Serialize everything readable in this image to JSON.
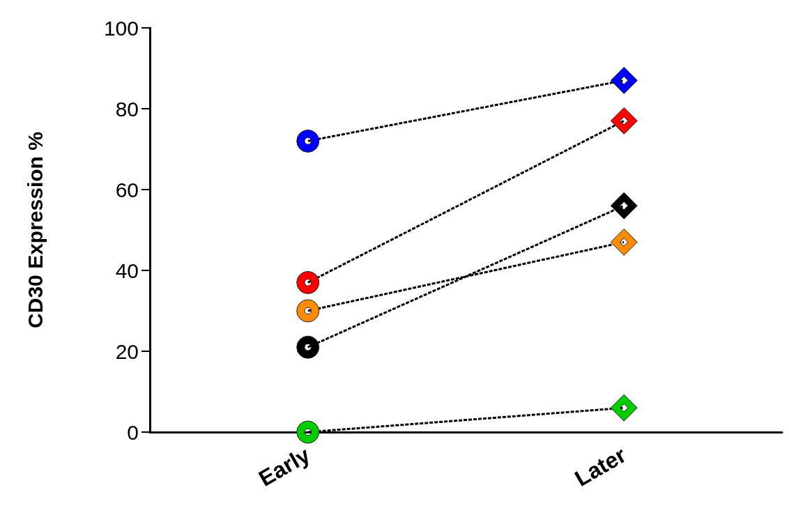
{
  "chart_data": {
    "type": "line",
    "ylabel": "CD30 Expression %",
    "categories": [
      "Early",
      "Later"
    ],
    "series": [
      {
        "color": "#0000ff",
        "values": [
          72,
          87
        ]
      },
      {
        "color": "#ff0000",
        "values": [
          37,
          77
        ]
      },
      {
        "color": "#ff8c00",
        "values": [
          30,
          47
        ]
      },
      {
        "color": "#000000",
        "values": [
          21,
          56
        ]
      },
      {
        "color": "#00cc00",
        "values": [
          0,
          6
        ]
      }
    ],
    "ylim": [
      0,
      100
    ],
    "yticks": [
      0,
      20,
      40,
      60,
      80,
      100
    ],
    "grid": false,
    "marker": [
      "circle",
      "diamond"
    ],
    "line_style": "dashed"
  }
}
